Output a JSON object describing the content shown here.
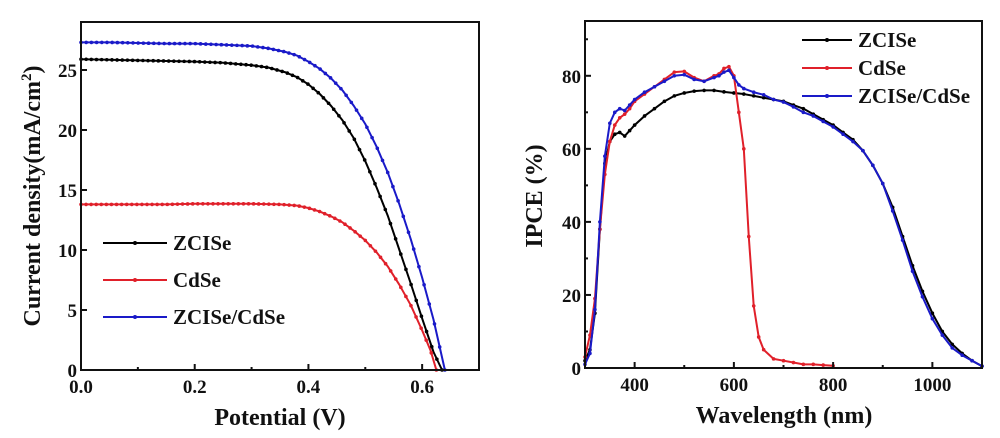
{
  "chart_data": [
    {
      "type": "line",
      "title": "",
      "xlabel": "Potential (V)",
      "ylabel": "Current density(mA/cm²)",
      "ylabel_main": "Current density(mA/cm",
      "ylabel_sup": "2",
      "ylabel_end": ")",
      "xlim": [
        0,
        0.7
      ],
      "ylim": [
        0,
        29
      ],
      "xticks": [
        0.0,
        0.2,
        0.4,
        0.6
      ],
      "xtick_labels": [
        "0.0",
        "0.2",
        "0.4",
        "0.6"
      ],
      "xminor": [
        0.1,
        0.3,
        0.5,
        0.7
      ],
      "yticks": [
        0,
        5,
        10,
        15,
        20,
        25
      ],
      "ytick_labels": [
        "0",
        "5",
        "10",
        "15",
        "20",
        "25"
      ],
      "grid": false,
      "legend_position": "bottom-left",
      "series": [
        {
          "name": "ZCISe",
          "color": "#000000",
          "x": [
            0,
            0.05,
            0.1,
            0.15,
            0.2,
            0.25,
            0.3,
            0.33,
            0.36,
            0.38,
            0.4,
            0.42,
            0.44,
            0.46,
            0.48,
            0.5,
            0.52,
            0.54,
            0.56,
            0.58,
            0.6,
            0.62,
            0.635
          ],
          "y": [
            25.9,
            25.85,
            25.8,
            25.75,
            25.7,
            25.6,
            25.4,
            25.2,
            24.8,
            24.4,
            23.8,
            23.0,
            22.0,
            20.8,
            19.3,
            17.4,
            15.2,
            12.8,
            10.0,
            7.2,
            4.3,
            1.5,
            0
          ]
        },
        {
          "name": "CdSe",
          "color": "#e0202a",
          "x": [
            0,
            0.05,
            0.1,
            0.15,
            0.2,
            0.25,
            0.3,
            0.35,
            0.38,
            0.4,
            0.42,
            0.44,
            0.46,
            0.48,
            0.5,
            0.52,
            0.54,
            0.56,
            0.58,
            0.6,
            0.615,
            0.625
          ],
          "y": [
            13.8,
            13.8,
            13.8,
            13.8,
            13.85,
            13.85,
            13.85,
            13.8,
            13.7,
            13.5,
            13.2,
            12.8,
            12.3,
            11.6,
            10.8,
            9.8,
            8.6,
            7.1,
            5.4,
            3.3,
            1.6,
            0
          ]
        },
        {
          "name": "ZCISe/CdSe",
          "color": "#1a1ac8",
          "x": [
            0,
            0.05,
            0.1,
            0.15,
            0.2,
            0.25,
            0.3,
            0.33,
            0.36,
            0.38,
            0.4,
            0.42,
            0.44,
            0.46,
            0.48,
            0.5,
            0.52,
            0.54,
            0.56,
            0.58,
            0.6,
            0.62,
            0.64
          ],
          "y": [
            27.3,
            27.3,
            27.25,
            27.2,
            27.2,
            27.1,
            27.0,
            26.8,
            26.5,
            26.2,
            25.7,
            25.1,
            24.3,
            23.3,
            22.0,
            20.5,
            18.6,
            16.4,
            13.8,
            10.9,
            7.7,
            4.2,
            0
          ]
        }
      ]
    },
    {
      "type": "line",
      "title": "",
      "xlabel": "Wavelength (nm)",
      "ylabel": "IPCE (%)",
      "xlim": [
        300,
        1100
      ],
      "ylim": [
        0,
        95
      ],
      "xticks": [
        400,
        600,
        800,
        1000
      ],
      "xtick_labels": [
        "400",
        "600",
        "800",
        "1000"
      ],
      "xminor": [
        500,
        700,
        900
      ],
      "yticks": [
        0,
        20,
        40,
        60,
        80
      ],
      "ytick_labels": [
        "0",
        "20",
        "40",
        "60",
        "80"
      ],
      "yminor": [
        10,
        30,
        50,
        70,
        90
      ],
      "grid": false,
      "legend_position": "top-right",
      "series": [
        {
          "name": "ZCISe",
          "color": "#000000",
          "x": [
            300,
            310,
            320,
            330,
            340,
            350,
            360,
            370,
            380,
            390,
            400,
            420,
            440,
            460,
            480,
            500,
            520,
            540,
            560,
            580,
            600,
            620,
            640,
            660,
            680,
            700,
            720,
            740,
            760,
            780,
            800,
            820,
            840,
            860,
            880,
            900,
            920,
            940,
            960,
            980,
            1000,
            1020,
            1040,
            1060,
            1080,
            1100
          ],
          "y": [
            2,
            5,
            15,
            38,
            56,
            62,
            64,
            64.5,
            63.5,
            65,
            66.5,
            69,
            71,
            73,
            74.5,
            75.3,
            75.8,
            76,
            76,
            75.6,
            75.3,
            75,
            74.5,
            74,
            73.5,
            73,
            72,
            71,
            69.5,
            68,
            66.5,
            64.5,
            62.5,
            59.5,
            55.5,
            50.5,
            44,
            36,
            28,
            21,
            15,
            10,
            6.5,
            4,
            2,
            0.5
          ]
        },
        {
          "name": "CdSe",
          "color": "#e0202a",
          "x": [
            300,
            310,
            320,
            330,
            340,
            350,
            360,
            370,
            380,
            390,
            400,
            420,
            440,
            460,
            480,
            500,
            520,
            540,
            560,
            570,
            580,
            590,
            600,
            610,
            620,
            630,
            640,
            650,
            660,
            680,
            700,
            720,
            740,
            760,
            780,
            800
          ],
          "y": [
            3,
            9,
            19,
            38,
            53,
            62,
            66.5,
            68.5,
            69.5,
            71,
            73,
            75,
            77,
            79,
            81,
            81.2,
            79.5,
            78.5,
            80,
            80.5,
            82,
            82.5,
            80,
            70,
            60,
            36,
            17,
            8.5,
            5,
            2.5,
            2,
            1.5,
            1,
            1,
            0.8,
            0.6
          ]
        },
        {
          "name": "ZCISe/CdSe",
          "color": "#1a1ac8",
          "x": [
            300,
            310,
            320,
            330,
            340,
            350,
            360,
            370,
            380,
            390,
            400,
            420,
            440,
            460,
            480,
            500,
            520,
            540,
            560,
            570,
            580,
            590,
            600,
            610,
            620,
            640,
            660,
            680,
            700,
            720,
            740,
            760,
            780,
            800,
            820,
            840,
            860,
            880,
            900,
            920,
            940,
            960,
            980,
            1000,
            1020,
            1040,
            1060,
            1080,
            1100
          ],
          "y": [
            1,
            4,
            16,
            40,
            58,
            67,
            70,
            71,
            70.5,
            72,
            73.5,
            75.5,
            77,
            78.5,
            80,
            80.3,
            79,
            78.5,
            79.5,
            80,
            81,
            81.5,
            79.5,
            77.5,
            76.5,
            75.5,
            74.8,
            73.5,
            72.8,
            71.5,
            70,
            69,
            67.5,
            66,
            64,
            62,
            59.5,
            55.5,
            50.5,
            43,
            35,
            26.5,
            19.5,
            13.5,
            9,
            5.5,
            3.5,
            2,
            0.5
          ]
        }
      ]
    }
  ]
}
